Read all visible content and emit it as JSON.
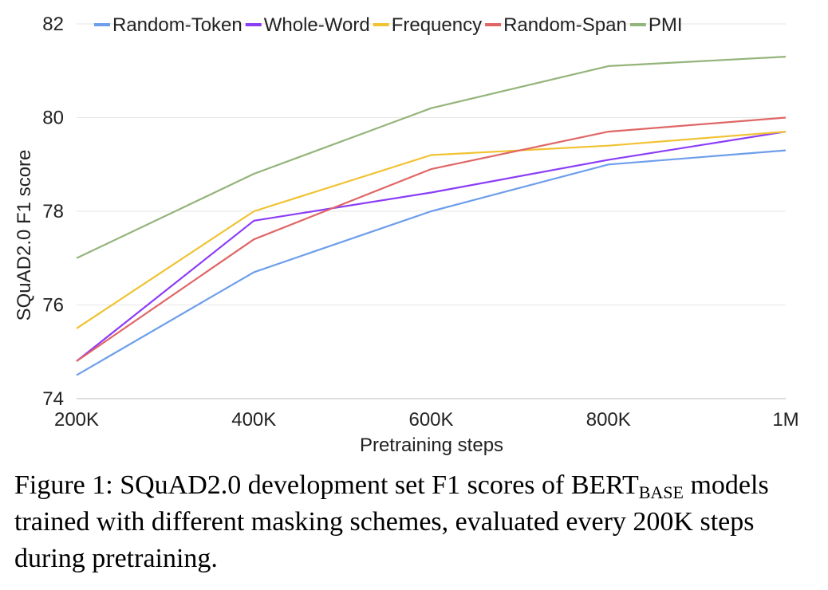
{
  "chart_data": {
    "type": "line",
    "title": "",
    "xlabel": "Pretraining steps",
    "ylabel": "SQuAD2.0 F1 score",
    "categories": [
      "200K",
      "400K",
      "600K",
      "800K",
      "1M"
    ],
    "ylim": [
      74,
      82
    ],
    "yticks": [
      74,
      76,
      78,
      80,
      82
    ],
    "grid": "horizontal",
    "legend_position": "top",
    "series": [
      {
        "name": "Random-Token",
        "color": "#6d9eeb",
        "values": [
          74.5,
          76.7,
          78.0,
          79.0,
          79.3
        ]
      },
      {
        "name": "Whole-Word",
        "color": "#8b3cf7",
        "values": [
          74.8,
          77.8,
          78.4,
          79.1,
          79.7
        ]
      },
      {
        "name": "Frequency",
        "color": "#f1c232",
        "values": [
          75.5,
          78.0,
          79.2,
          79.4,
          79.7
        ]
      },
      {
        "name": "Random-Span",
        "color": "#e06666",
        "values": [
          74.8,
          77.4,
          78.9,
          79.7,
          80.0
        ]
      },
      {
        "name": "PMI",
        "color": "#93b47a",
        "values": [
          77.0,
          78.8,
          80.2,
          81.1,
          81.3
        ]
      }
    ]
  },
  "caption": {
    "prefix": "Figure 1: SQuAD2.0 development set F1 scores of BERT",
    "subscript": "BASE",
    "suffix": " models trained with different masking schemes, evaluated every 200K steps during pretraining."
  }
}
